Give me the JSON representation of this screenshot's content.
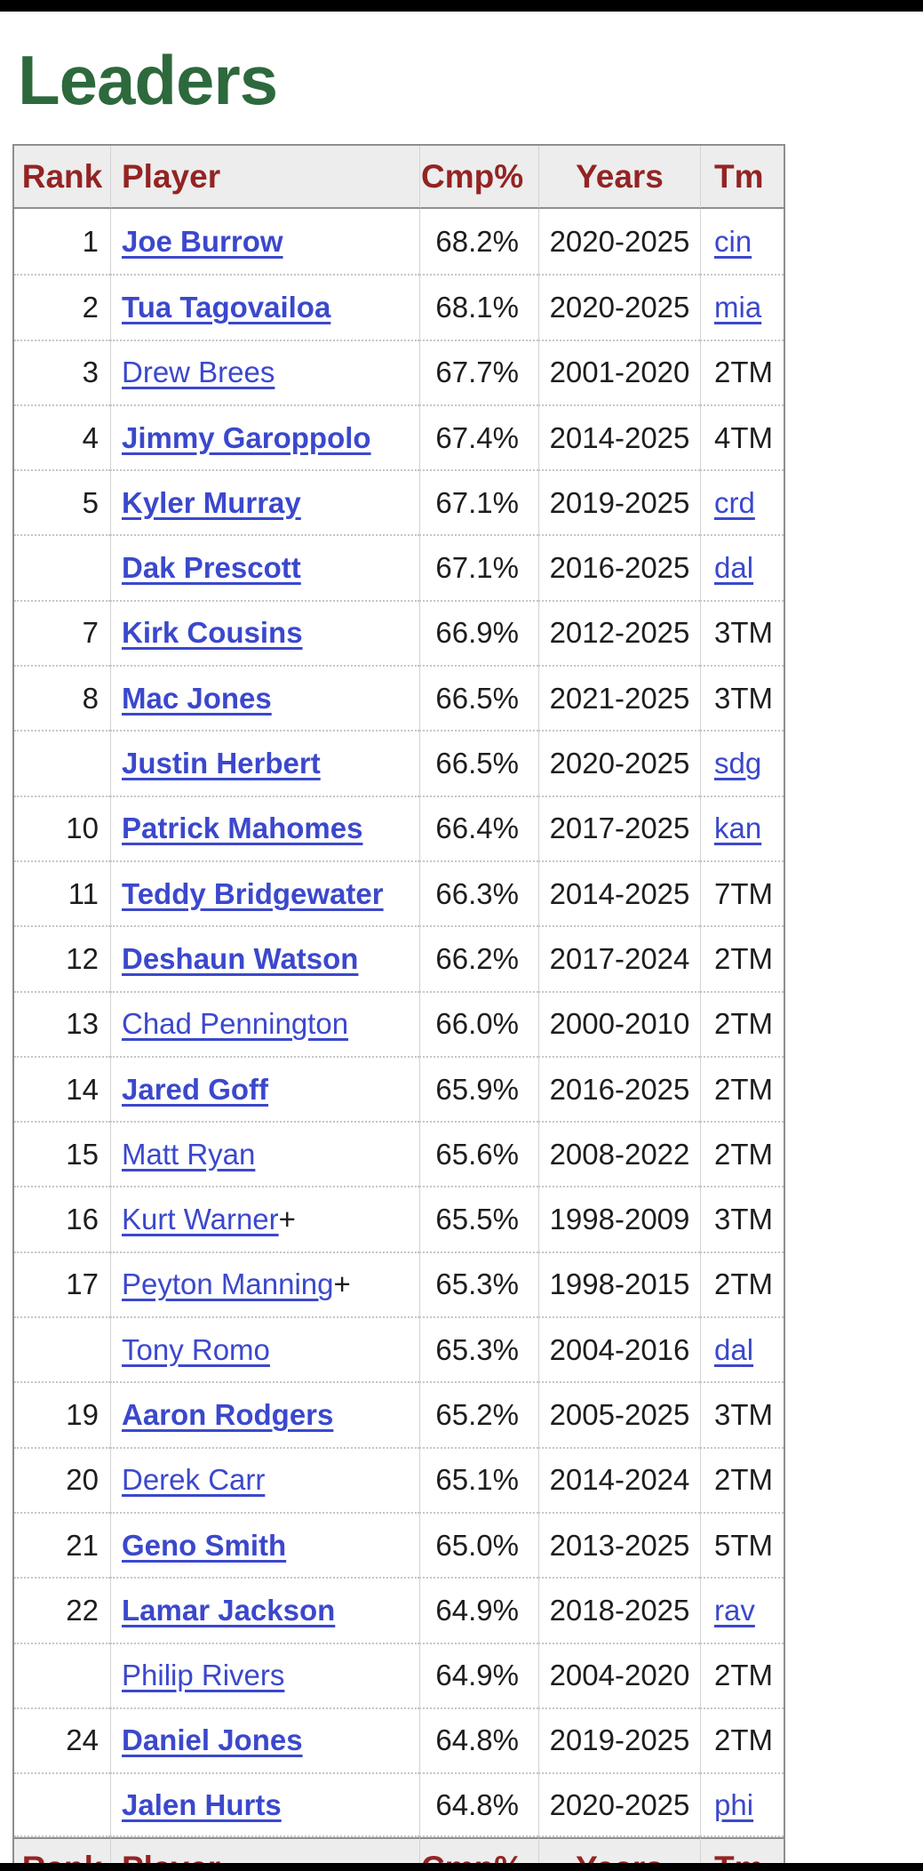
{
  "page": {
    "title": "Leaders"
  },
  "colors": {
    "title_green": "#2d693c",
    "header_maroon": "#932423",
    "link_blue": "#3b48cc",
    "header_bg": "#ededed",
    "border_dark": "#8e8e8e",
    "text_black": "#1d1d1d",
    "top_bottom_bars": "#000000"
  },
  "table": {
    "columns": [
      "Rank",
      "Player",
      "Cmp%",
      "Years",
      "Tm"
    ],
    "rows": [
      {
        "rank": "1",
        "player": "Joe Burrow",
        "bold": true,
        "plus": false,
        "cmp": "68.2%",
        "years": "2020-2025",
        "tm": "cin",
        "tm_link": true
      },
      {
        "rank": "2",
        "player": "Tua Tagovailoa",
        "bold": true,
        "plus": false,
        "cmp": "68.1%",
        "years": "2020-2025",
        "tm": "mia",
        "tm_link": true
      },
      {
        "rank": "3",
        "player": "Drew Brees",
        "bold": false,
        "plus": false,
        "cmp": "67.7%",
        "years": "2001-2020",
        "tm": "2TM",
        "tm_link": false
      },
      {
        "rank": "4",
        "player": "Jimmy Garoppolo",
        "bold": true,
        "plus": false,
        "cmp": "67.4%",
        "years": "2014-2025",
        "tm": "4TM",
        "tm_link": false
      },
      {
        "rank": "5",
        "player": "Kyler Murray",
        "bold": true,
        "plus": false,
        "cmp": "67.1%",
        "years": "2019-2025",
        "tm": "crd",
        "tm_link": true
      },
      {
        "rank": "",
        "player": "Dak Prescott",
        "bold": true,
        "plus": false,
        "cmp": "67.1%",
        "years": "2016-2025",
        "tm": "dal",
        "tm_link": true
      },
      {
        "rank": "7",
        "player": "Kirk Cousins",
        "bold": true,
        "plus": false,
        "cmp": "66.9%",
        "years": "2012-2025",
        "tm": "3TM",
        "tm_link": false
      },
      {
        "rank": "8",
        "player": "Mac Jones",
        "bold": true,
        "plus": false,
        "cmp": "66.5%",
        "years": "2021-2025",
        "tm": "3TM",
        "tm_link": false
      },
      {
        "rank": "",
        "player": "Justin Herbert",
        "bold": true,
        "plus": false,
        "cmp": "66.5%",
        "years": "2020-2025",
        "tm": "sdg",
        "tm_link": true
      },
      {
        "rank": "10",
        "player": "Patrick Mahomes",
        "bold": true,
        "plus": false,
        "cmp": "66.4%",
        "years": "2017-2025",
        "tm": "kan",
        "tm_link": true
      },
      {
        "rank": "11",
        "player": "Teddy Bridgewater",
        "bold": true,
        "plus": false,
        "cmp": "66.3%",
        "years": "2014-2025",
        "tm": "7TM",
        "tm_link": false
      },
      {
        "rank": "12",
        "player": "Deshaun Watson",
        "bold": true,
        "plus": false,
        "cmp": "66.2%",
        "years": "2017-2024",
        "tm": "2TM",
        "tm_link": false
      },
      {
        "rank": "13",
        "player": "Chad Pennington",
        "bold": false,
        "plus": false,
        "cmp": "66.0%",
        "years": "2000-2010",
        "tm": "2TM",
        "tm_link": false
      },
      {
        "rank": "14",
        "player": "Jared Goff",
        "bold": true,
        "plus": false,
        "cmp": "65.9%",
        "years": "2016-2025",
        "tm": "2TM",
        "tm_link": false
      },
      {
        "rank": "15",
        "player": "Matt Ryan",
        "bold": false,
        "plus": false,
        "cmp": "65.6%",
        "years": "2008-2022",
        "tm": "2TM",
        "tm_link": false
      },
      {
        "rank": "16",
        "player": "Kurt Warner",
        "bold": false,
        "plus": true,
        "cmp": "65.5%",
        "years": "1998-2009",
        "tm": "3TM",
        "tm_link": false
      },
      {
        "rank": "17",
        "player": "Peyton Manning",
        "bold": false,
        "plus": true,
        "cmp": "65.3%",
        "years": "1998-2015",
        "tm": "2TM",
        "tm_link": false
      },
      {
        "rank": "",
        "player": "Tony Romo",
        "bold": false,
        "plus": false,
        "cmp": "65.3%",
        "years": "2004-2016",
        "tm": "dal",
        "tm_link": true
      },
      {
        "rank": "19",
        "player": "Aaron Rodgers",
        "bold": true,
        "plus": false,
        "cmp": "65.2%",
        "years": "2005-2025",
        "tm": "3TM",
        "tm_link": false
      },
      {
        "rank": "20",
        "player": "Derek Carr",
        "bold": false,
        "plus": false,
        "cmp": "65.1%",
        "years": "2014-2024",
        "tm": "2TM",
        "tm_link": false
      },
      {
        "rank": "21",
        "player": "Geno Smith",
        "bold": true,
        "plus": false,
        "cmp": "65.0%",
        "years": "2013-2025",
        "tm": "5TM",
        "tm_link": false
      },
      {
        "rank": "22",
        "player": "Lamar Jackson",
        "bold": true,
        "plus": false,
        "cmp": "64.9%",
        "years": "2018-2025",
        "tm": "rav",
        "tm_link": true
      },
      {
        "rank": "",
        "player": "Philip Rivers",
        "bold": false,
        "plus": false,
        "cmp": "64.9%",
        "years": "2004-2020",
        "tm": "2TM",
        "tm_link": false
      },
      {
        "rank": "24",
        "player": "Daniel Jones",
        "bold": true,
        "plus": false,
        "cmp": "64.8%",
        "years": "2019-2025",
        "tm": "2TM",
        "tm_link": false
      },
      {
        "rank": "",
        "player": "Jalen Hurts",
        "bold": true,
        "plus": false,
        "cmp": "64.8%",
        "years": "2020-2025",
        "tm": "phi",
        "tm_link": true
      }
    ]
  }
}
